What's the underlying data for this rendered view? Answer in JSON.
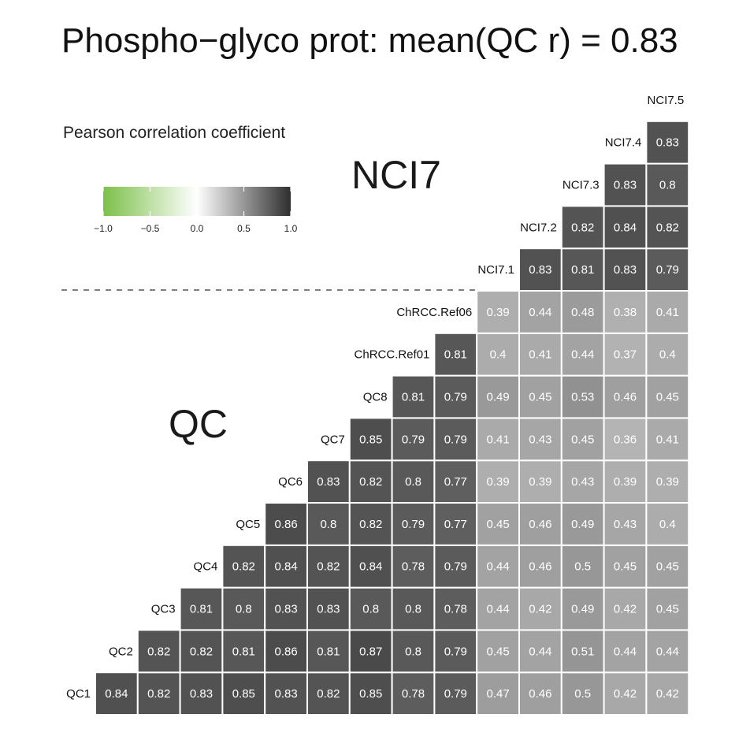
{
  "chart_data": {
    "type": "heatmap",
    "title": "Phospho−glyco prot: mean(QC r) = 0.83",
    "legend": {
      "title": "Pearson correlation coefficient",
      "ticks": [
        "−1.0",
        "−0.5",
        "0.0",
        "0.5",
        "1.0"
      ],
      "tick_values": [
        -1.0,
        -0.5,
        0.0,
        0.5,
        1.0
      ],
      "range": [
        -1,
        1
      ],
      "colors": {
        "low": "#7cc04a",
        "mid": "#ffffff",
        "high": "#2f2f2f"
      }
    },
    "group_labels": {
      "top": "NCI7",
      "bottom": "QC"
    },
    "samples": [
      "QC1",
      "QC2",
      "QC3",
      "QC4",
      "QC5",
      "QC6",
      "QC7",
      "QC8",
      "ChRCC.Ref01",
      "ChRCC.Ref06",
      "NCI7.1",
      "NCI7.2",
      "NCI7.3",
      "NCI7.4",
      "NCI7.5"
    ],
    "divider_after_index": 9,
    "rows": [
      {
        "label": "QC1",
        "values": [
          "0.84",
          "0.82",
          "0.83",
          "0.85",
          "0.83",
          "0.82",
          "0.85",
          "0.78",
          "0.79",
          "0.47",
          "0.46",
          "0.5",
          "0.42",
          "0.42"
        ]
      },
      {
        "label": "QC2",
        "values": [
          "0.82",
          "0.82",
          "0.81",
          "0.86",
          "0.81",
          "0.87",
          "0.8",
          "0.79",
          "0.45",
          "0.44",
          "0.51",
          "0.44",
          "0.44"
        ]
      },
      {
        "label": "QC3",
        "values": [
          "0.81",
          "0.8",
          "0.83",
          "0.83",
          "0.8",
          "0.8",
          "0.78",
          "0.44",
          "0.42",
          "0.49",
          "0.42",
          "0.45"
        ]
      },
      {
        "label": "QC4",
        "values": [
          "0.82",
          "0.84",
          "0.82",
          "0.84",
          "0.78",
          "0.79",
          "0.44",
          "0.46",
          "0.5",
          "0.45",
          "0.45"
        ]
      },
      {
        "label": "QC5",
        "values": [
          "0.86",
          "0.8",
          "0.82",
          "0.79",
          "0.77",
          "0.45",
          "0.46",
          "0.49",
          "0.43",
          "0.4"
        ]
      },
      {
        "label": "QC6",
        "values": [
          "0.83",
          "0.82",
          "0.8",
          "0.77",
          "0.39",
          "0.39",
          "0.43",
          "0.39",
          "0.39"
        ]
      },
      {
        "label": "QC7",
        "values": [
          "0.85",
          "0.79",
          "0.79",
          "0.41",
          "0.43",
          "0.45",
          "0.36",
          "0.41"
        ]
      },
      {
        "label": "QC8",
        "values": [
          "0.81",
          "0.79",
          "0.49",
          "0.45",
          "0.53",
          "0.46",
          "0.45"
        ]
      },
      {
        "label": "ChRCC.Ref01",
        "values": [
          "0.81",
          "0.4",
          "0.41",
          "0.44",
          "0.37",
          "0.4"
        ]
      },
      {
        "label": "ChRCC.Ref06",
        "values": [
          "0.39",
          "0.44",
          "0.48",
          "0.38",
          "0.41"
        ]
      },
      {
        "label": "NCI7.1",
        "values": [
          "0.83",
          "0.81",
          "0.83",
          "0.79"
        ]
      },
      {
        "label": "NCI7.2",
        "values": [
          "0.82",
          "0.84",
          "0.82"
        ]
      },
      {
        "label": "NCI7.3",
        "values": [
          "0.83",
          "0.8"
        ]
      },
      {
        "label": "NCI7.4",
        "values": [
          "0.83"
        ]
      },
      {
        "label": "NCI7.5",
        "values": []
      }
    ]
  }
}
